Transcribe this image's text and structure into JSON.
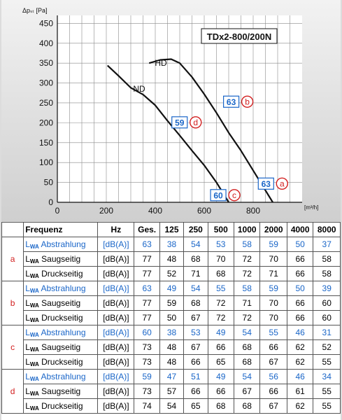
{
  "chart_data": {
    "type": "line",
    "title": "TDx2-800/200N",
    "ylabel": "Δpₛₜ [Pa]",
    "xlabel": "[m³/h]",
    "xlim": [
      0,
      1000
    ],
    "ylim": [
      0,
      470
    ],
    "xticks": [
      0,
      200,
      400,
      600,
      800
    ],
    "yticks": [
      0,
      50,
      100,
      150,
      200,
      250,
      300,
      350,
      400,
      450
    ],
    "grid": true,
    "series": [
      {
        "name": "HD",
        "x": [
          375,
          420,
          465,
          500,
          550,
          600,
          650,
          700,
          750,
          800,
          850,
          880
        ],
        "y": [
          350,
          358,
          360,
          350,
          315,
          272,
          225,
          175,
          130,
          80,
          30,
          0
        ]
      },
      {
        "name": "ND",
        "x": [
          205,
          250,
          300,
          350,
          400,
          450,
          500,
          550,
          600,
          650,
          700
        ],
        "y": [
          344,
          318,
          288,
          271,
          244,
          205,
          168,
          130,
          93,
          50,
          0
        ]
      }
    ],
    "points": [
      {
        "letter": "a",
        "value": "63",
        "x": 918,
        "y": 47
      },
      {
        "letter": "b",
        "value": "63",
        "x": 776,
        "y": 253
      },
      {
        "letter": "c",
        "value": "60",
        "x": 723,
        "y": 18
      },
      {
        "letter": "d",
        "value": "59",
        "x": 565,
        "y": 201
      }
    ]
  },
  "table": {
    "headers": [
      "Frequenz",
      "Hz",
      "Ges.",
      "125",
      "250",
      "500",
      "1000",
      "2000",
      "4000",
      "8000"
    ],
    "groups": [
      {
        "letter": "a",
        "rows": [
          {
            "prefix": "L",
            "sub": "WA",
            "name": "Abstrahlung",
            "unit": "[dB(A)]",
            "values": [
              "63",
              "38",
              "54",
              "53",
              "58",
              "59",
              "50",
              "37"
            ]
          },
          {
            "prefix": "L",
            "sub": "WA",
            "name": "Saugseitig",
            "unit": "[dB(A)]",
            "values": [
              "77",
              "48",
              "68",
              "70",
              "72",
              "70",
              "66",
              "58"
            ]
          },
          {
            "prefix": "L",
            "sub": "WA",
            "name": "Druckseitig",
            "unit": "[dB(A)]",
            "values": [
              "77",
              "52",
              "71",
              "68",
              "72",
              "71",
              "66",
              "58"
            ]
          }
        ]
      },
      {
        "letter": "b",
        "rows": [
          {
            "prefix": "L",
            "sub": "WA",
            "name": "Abstrahlung",
            "unit": "[dB(A)]",
            "values": [
              "63",
              "49",
              "54",
              "55",
              "58",
              "59",
              "50",
              "39"
            ]
          },
          {
            "prefix": "L",
            "sub": "WA",
            "name": "Saugseitig",
            "unit": "[dB(A)]",
            "values": [
              "77",
              "59",
              "68",
              "72",
              "71",
              "70",
              "66",
              "60"
            ]
          },
          {
            "prefix": "L",
            "sub": "WA",
            "name": "Druckseitig",
            "unit": "[dB(A)]",
            "values": [
              "77",
              "50",
              "67",
              "72",
              "72",
              "70",
              "66",
              "60"
            ]
          }
        ]
      },
      {
        "letter": "c",
        "rows": [
          {
            "prefix": "L",
            "sub": "WA",
            "name": "Abstrahlung",
            "unit": "[dB(A)]",
            "values": [
              "60",
              "38",
              "53",
              "49",
              "54",
              "55",
              "46",
              "31"
            ]
          },
          {
            "prefix": "L",
            "sub": "WA",
            "name": "Saugseitig",
            "unit": "[dB(A)]",
            "values": [
              "73",
              "48",
              "67",
              "66",
              "68",
              "66",
              "62",
              "52"
            ]
          },
          {
            "prefix": "L",
            "sub": "WA",
            "name": "Druckseitig",
            "unit": "[dB(A)]",
            "values": [
              "73",
              "48",
              "66",
              "65",
              "68",
              "67",
              "62",
              "55"
            ]
          }
        ]
      },
      {
        "letter": "d",
        "rows": [
          {
            "prefix": "L",
            "sub": "WA",
            "name": "Abstrahlung",
            "unit": "[dB(A)]",
            "values": [
              "59",
              "47",
              "51",
              "49",
              "54",
              "56",
              "46",
              "34"
            ]
          },
          {
            "prefix": "L",
            "sub": "WA",
            "name": "Saugseitig",
            "unit": "[dB(A)]",
            "values": [
              "73",
              "57",
              "66",
              "66",
              "67",
              "66",
              "61",
              "55"
            ]
          },
          {
            "prefix": "L",
            "sub": "WA",
            "name": "Druckseitig",
            "unit": "[dB(A)]",
            "values": [
              "74",
              "54",
              "65",
              "68",
              "68",
              "67",
              "62",
              "55"
            ]
          }
        ]
      }
    ]
  },
  "colors": {
    "blue": "#1a66c8",
    "red": "#d21f1f",
    "text": "#111111",
    "grid": "#8a8a8a"
  }
}
